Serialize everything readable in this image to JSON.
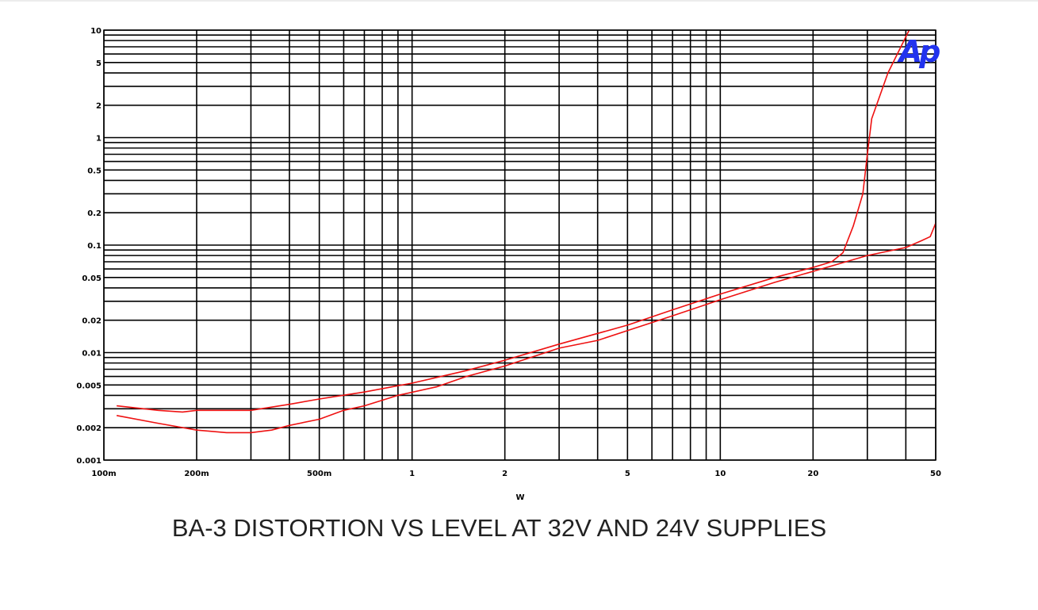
{
  "chart_data": {
    "type": "line",
    "title": "BA-3 DISTORTION VS LEVEL AT 32V AND 24V SUPPLIES",
    "xlabel": "W",
    "ylabel": "",
    "xscale": "log",
    "yscale": "log",
    "xlim": [
      0.1,
      50
    ],
    "ylim": [
      0.001,
      10
    ],
    "grid": true,
    "logo": "Ap",
    "x_ticks": [
      {
        "value": 0.1,
        "label": "100m"
      },
      {
        "value": 0.2,
        "label": "200m"
      },
      {
        "value": 0.5,
        "label": "500m"
      },
      {
        "value": 1,
        "label": "1"
      },
      {
        "value": 2,
        "label": "2"
      },
      {
        "value": 5,
        "label": "5"
      },
      {
        "value": 10,
        "label": "10"
      },
      {
        "value": 20,
        "label": "20"
      },
      {
        "value": 50,
        "label": "50"
      }
    ],
    "y_ticks": [
      {
        "value": 10,
        "label": "10"
      },
      {
        "value": 5,
        "label": "5"
      },
      {
        "value": 2,
        "label": "2"
      },
      {
        "value": 1,
        "label": "1"
      },
      {
        "value": 0.5,
        "label": "0.5"
      },
      {
        "value": 0.2,
        "label": "0.2"
      },
      {
        "value": 0.1,
        "label": "0.1"
      },
      {
        "value": 0.05,
        "label": "0.05"
      },
      {
        "value": 0.02,
        "label": "0.02"
      },
      {
        "value": 0.01,
        "label": "0.01"
      },
      {
        "value": 0.005,
        "label": "0.005"
      },
      {
        "value": 0.002,
        "label": "0.002"
      },
      {
        "value": 0.001,
        "label": "0.001"
      }
    ],
    "series": [
      {
        "color": "#ee1111",
        "points": [
          [
            0.11,
            0.0032
          ],
          [
            0.15,
            0.0029
          ],
          [
            0.18,
            0.0028
          ],
          [
            0.2,
            0.0029
          ],
          [
            0.3,
            0.0029
          ],
          [
            0.4,
            0.0033
          ],
          [
            0.5,
            0.0037
          ],
          [
            0.7,
            0.0043
          ],
          [
            1,
            0.0052
          ],
          [
            1.5,
            0.0068
          ],
          [
            2,
            0.0085
          ],
          [
            3,
            0.012
          ],
          [
            5,
            0.018
          ],
          [
            7,
            0.025
          ],
          [
            10,
            0.035
          ],
          [
            15,
            0.05
          ],
          [
            20,
            0.062
          ],
          [
            23,
            0.07
          ],
          [
            25,
            0.085
          ],
          [
            27,
            0.15
          ],
          [
            29,
            0.3
          ],
          [
            30,
            0.7
          ],
          [
            31,
            1.5
          ],
          [
            35,
            4
          ],
          [
            41,
            10
          ]
        ]
      },
      {
        "color": "#ee1111",
        "points": [
          [
            0.11,
            0.0026
          ],
          [
            0.15,
            0.0022
          ],
          [
            0.2,
            0.0019
          ],
          [
            0.25,
            0.0018
          ],
          [
            0.3,
            0.0018
          ],
          [
            0.35,
            0.0019
          ],
          [
            0.4,
            0.0021
          ],
          [
            0.5,
            0.0024
          ],
          [
            0.6,
            0.0029
          ],
          [
            0.7,
            0.0032
          ],
          [
            0.9,
            0.004
          ],
          [
            1.2,
            0.0048
          ],
          [
            1.5,
            0.006
          ],
          [
            2,
            0.0075
          ],
          [
            3,
            0.011
          ],
          [
            4,
            0.013
          ],
          [
            5,
            0.016
          ],
          [
            7,
            0.022
          ],
          [
            10,
            0.031
          ],
          [
            15,
            0.045
          ],
          [
            20,
            0.057
          ],
          [
            30,
            0.08
          ],
          [
            40,
            0.095
          ],
          [
            45,
            0.11
          ],
          [
            48,
            0.12
          ],
          [
            50,
            0.16
          ]
        ]
      }
    ]
  }
}
